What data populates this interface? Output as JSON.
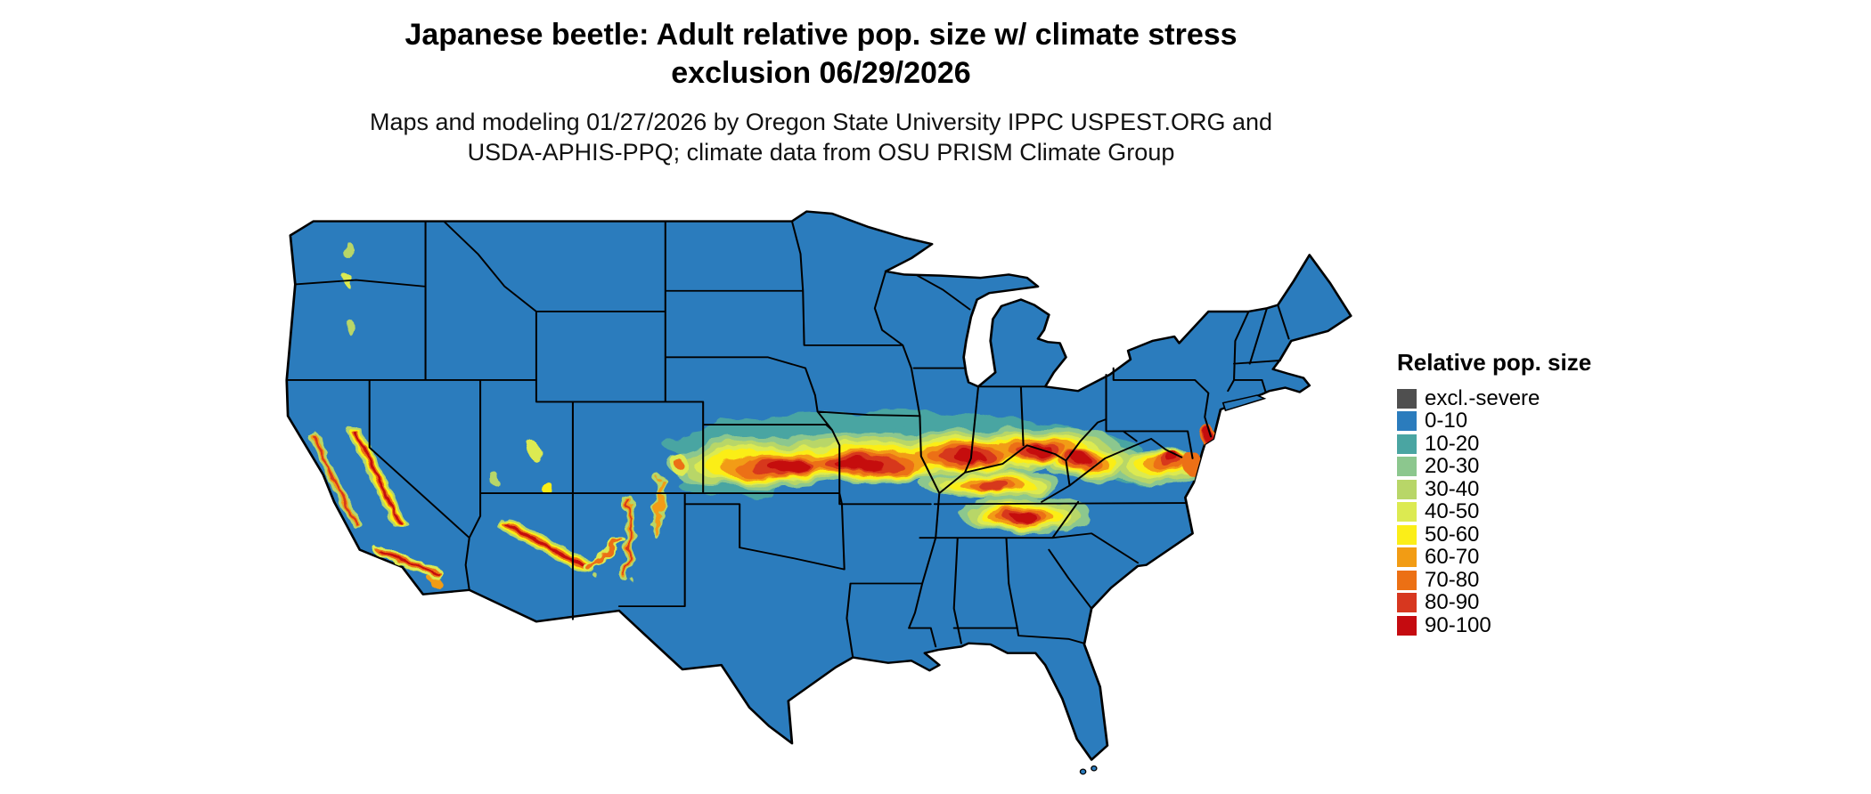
{
  "header": {
    "title_line1": "Japanese beetle: Adult relative pop. size w/ climate stress",
    "title_line2": "exclusion 06/29/2026",
    "subtitle_line1": "Maps and modeling 01/27/2026 by Oregon State University IPPC USPEST.ORG and",
    "subtitle_line2": "USDA-APHIS-PPQ; climate data from OSU PRISM Climate Group"
  },
  "legend": {
    "title": "Relative pop. size",
    "entries": [
      {
        "label": "excl.-severe",
        "color": "#4f4f4f"
      },
      {
        "label": "0-10",
        "color": "#2b7cbd"
      },
      {
        "label": "10-20",
        "color": "#4aa5a2"
      },
      {
        "label": "20-30",
        "color": "#8cc78e"
      },
      {
        "label": "30-40",
        "color": "#b8d668"
      },
      {
        "label": "40-50",
        "color": "#dcea51"
      },
      {
        "label": "50-60",
        "color": "#fbee18"
      },
      {
        "label": "60-70",
        "color": "#f29c14"
      },
      {
        "label": "70-80",
        "color": "#ec7014"
      },
      {
        "label": "80-90",
        "color": "#d7371f"
      },
      {
        "label": "90-100",
        "color": "#c50b10"
      }
    ]
  }
}
